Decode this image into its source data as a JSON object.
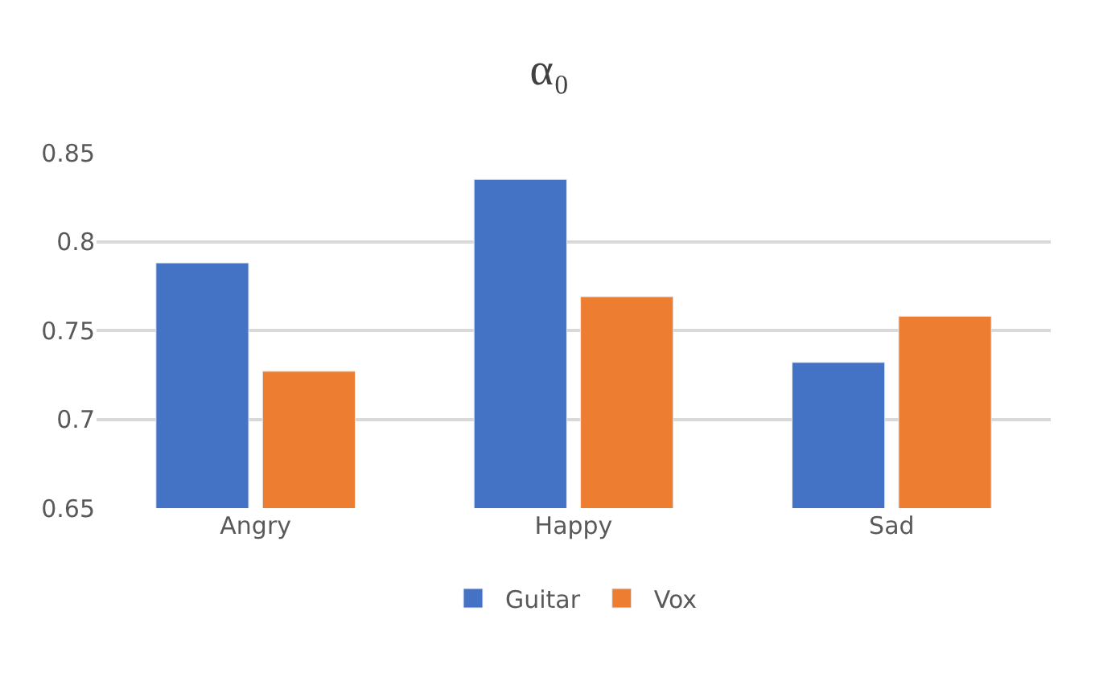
{
  "chart_data": {
    "type": "bar",
    "title": "α₀",
    "categories": [
      "Angry",
      "Happy",
      "Sad"
    ],
    "series": [
      {
        "name": "Guitar",
        "color": "#4472c4",
        "values": [
          0.788,
          0.835,
          0.732
        ]
      },
      {
        "name": "Vox",
        "color": "#ed7d31",
        "values": [
          0.727,
          0.769,
          0.758
        ]
      }
    ],
    "ylim": [
      0.65,
      0.85
    ],
    "yticks": [
      0.65,
      0.7,
      0.75,
      0.8,
      0.85
    ],
    "grid": "y",
    "legend": "bottom"
  }
}
